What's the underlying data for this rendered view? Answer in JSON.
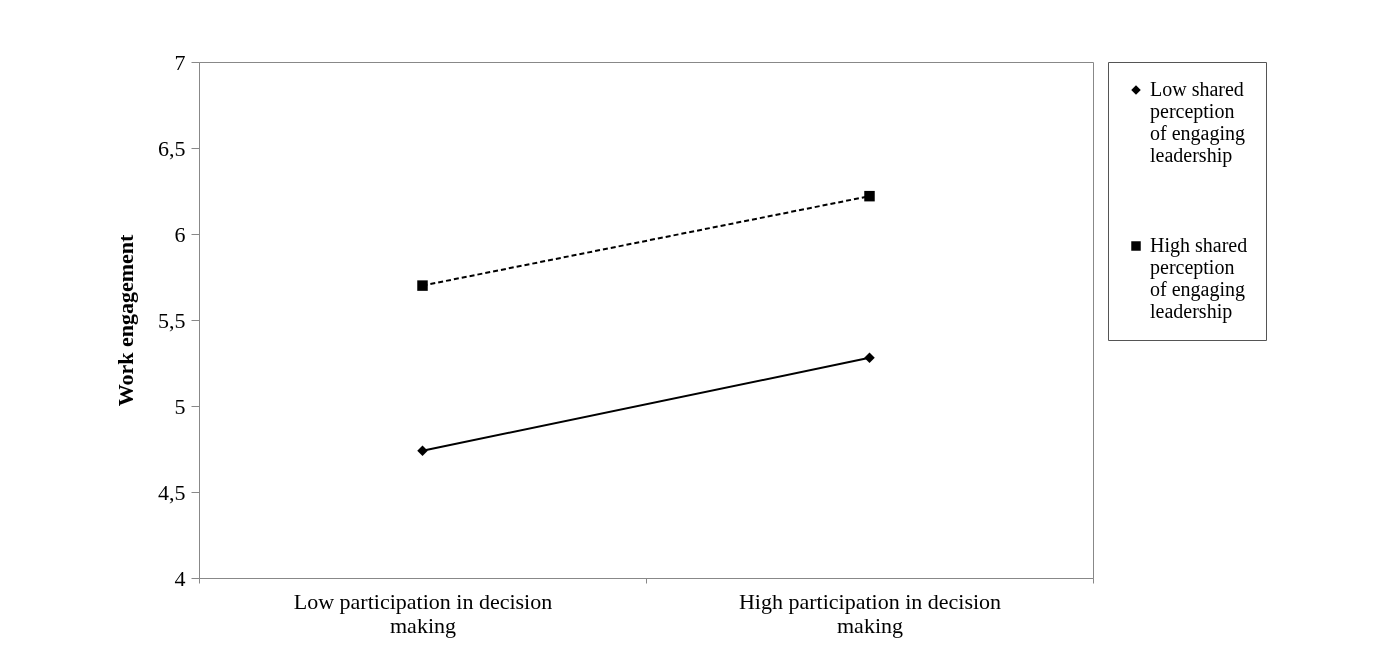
{
  "chart_data": {
    "type": "line",
    "ylabel": "Work engagement",
    "categories": [
      "Low participation in decision making",
      "High participation in decision making"
    ],
    "series": [
      {
        "name": "Low shared perception of engaging leadership",
        "color": "#000000",
        "values": [
          4.74,
          5.28
        ],
        "marker": "diamond",
        "line_style": "solid"
      },
      {
        "name": "High shared perception of engaging leadership",
        "color": "#000000",
        "values": [
          5.7,
          6.22
        ],
        "marker": "square",
        "line_style": "dashed"
      }
    ],
    "ylim": [
      4,
      7
    ],
    "yticks": [
      4,
      {
        "value": 4.5,
        "label": "4,5"
      },
      5,
      {
        "value": 5.5,
        "label": "5,5"
      },
      6,
      {
        "value": 6.5,
        "label": "6,5"
      },
      7
    ],
    "grid": false,
    "legend": "right"
  }
}
